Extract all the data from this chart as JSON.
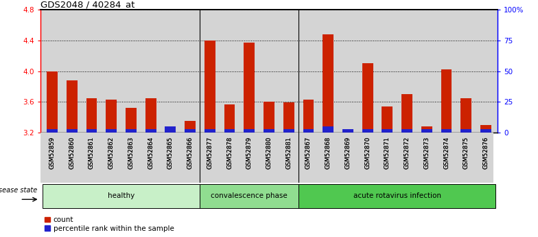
{
  "title": "GDS2048 / 40284_at",
  "samples": [
    "GSM52859",
    "GSM52860",
    "GSM52861",
    "GSM52862",
    "GSM52863",
    "GSM52864",
    "GSM52865",
    "GSM52866",
    "GSM52877",
    "GSM52878",
    "GSM52879",
    "GSM52880",
    "GSM52881",
    "GSM52867",
    "GSM52868",
    "GSM52869",
    "GSM52870",
    "GSM52871",
    "GSM52872",
    "GSM52873",
    "GSM52874",
    "GSM52875",
    "GSM52876"
  ],
  "count_values": [
    4.0,
    3.88,
    3.65,
    3.63,
    3.52,
    3.65,
    3.22,
    3.35,
    4.4,
    3.57,
    4.37,
    3.6,
    3.59,
    3.63,
    4.48,
    3.22,
    4.1,
    3.54,
    3.7,
    3.28,
    4.02,
    3.65,
    3.3
  ],
  "percentile_values": [
    3,
    3,
    3,
    3,
    3,
    3,
    5,
    3,
    3,
    3,
    3,
    3,
    3,
    3,
    5,
    3,
    3,
    3,
    3,
    3,
    3,
    3,
    3
  ],
  "groups": [
    {
      "label": "healthy",
      "start": 0,
      "end": 8,
      "color": "#c8f0c8"
    },
    {
      "label": "convalescence phase",
      "start": 8,
      "end": 13,
      "color": "#90dd90"
    },
    {
      "label": "acute rotavirus infection",
      "start": 13,
      "end": 23,
      "color": "#50c850"
    }
  ],
  "ylim_left": [
    3.2,
    4.8
  ],
  "ylim_right": [
    0,
    100
  ],
  "yticks_left": [
    3.2,
    3.6,
    4.0,
    4.4,
    4.8
  ],
  "yticks_right": [
    0,
    25,
    50,
    75,
    100
  ],
  "ytick_labels_right": [
    "0",
    "25",
    "50",
    "75",
    "100%"
  ],
  "bar_color_red": "#cc2200",
  "bar_color_blue": "#2222cc",
  "bg_color": "#d4d4d4",
  "bar_width": 0.55,
  "disease_state_label": "disease state",
  "legend_count": "count",
  "legend_percentile": "percentile rank within the sample"
}
